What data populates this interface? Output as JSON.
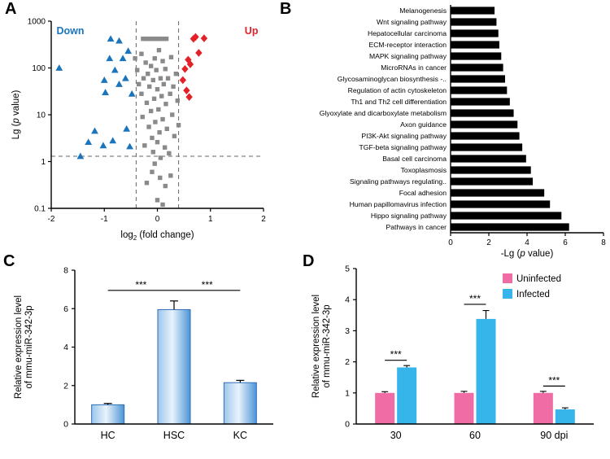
{
  "panels": {
    "a": {
      "label": "A"
    },
    "b": {
      "label": "B"
    },
    "c": {
      "label": "C"
    },
    "d": {
      "label": "D"
    }
  },
  "chart_data": [
    {
      "id": "volcano",
      "type": "scatter",
      "xlabel": "log2 (fold change)",
      "ylabel": "Lg (p value)",
      "xlim": [
        -2,
        2
      ],
      "ylim_log": [
        0.1,
        1000
      ],
      "x_ticks": [
        -2,
        -1,
        0,
        1,
        2
      ],
      "y_ticks": [
        0.1,
        1,
        10,
        100,
        1000
      ],
      "threshold_x": [
        -0.4,
        0.4
      ],
      "threshold_y": 1.3,
      "annotations": [
        {
          "text": "Down",
          "color": "#1B75BC"
        },
        {
          "text": "Up",
          "color": "#E32128"
        }
      ],
      "series": [
        {
          "name": "down",
          "marker": "triangle",
          "color": "#1B75BC",
          "points": [
            [
              -1.85,
              100
            ],
            [
              -1.45,
              1.3
            ],
            [
              -1.3,
              2.6
            ],
            [
              -1.18,
              4.5
            ],
            [
              -1.02,
              2.2
            ],
            [
              -1.0,
              55
            ],
            [
              -0.98,
              30
            ],
            [
              -0.9,
              160
            ],
            [
              -0.88,
              420
            ],
            [
              -0.84,
              2.8
            ],
            [
              -0.8,
              90
            ],
            [
              -0.72,
              380
            ],
            [
              -0.72,
              45
            ],
            [
              -0.65,
              160
            ],
            [
              -0.6,
              60
            ],
            [
              -0.58,
              5
            ],
            [
              -0.55,
              230
            ],
            [
              -0.52,
              2.1
            ],
            [
              -0.48,
              28
            ]
          ]
        },
        {
          "name": "ns",
          "marker": "square",
          "color": "#8A8A8A",
          "points": [
            [
              -0.27,
              420
            ],
            [
              -0.23,
              420
            ],
            [
              -0.19,
              420
            ],
            [
              -0.15,
              420
            ],
            [
              -0.11,
              420
            ],
            [
              -0.07,
              420
            ],
            [
              -0.03,
              420
            ],
            [
              0.01,
              420
            ],
            [
              0.05,
              420
            ],
            [
              0.09,
              420
            ],
            [
              0.13,
              420
            ],
            [
              0.17,
              420
            ],
            [
              -0.42,
              160
            ],
            [
              -0.38,
              90
            ],
            [
              -0.35,
              45
            ],
            [
              -0.3,
              200
            ],
            [
              -0.3,
              28
            ],
            [
              -0.28,
              9
            ],
            [
              -0.26,
              60
            ],
            [
              -0.24,
              2.2
            ],
            [
              -0.22,
              130
            ],
            [
              -0.2,
              18
            ],
            [
              -0.18,
              75
            ],
            [
              -0.16,
              5.5
            ],
            [
              -0.15,
              40
            ],
            [
              -0.12,
              110
            ],
            [
              -0.12,
              12
            ],
            [
              -0.1,
              3.2
            ],
            [
              -0.08,
              55
            ],
            [
              -0.08,
              1.6
            ],
            [
              -0.06,
              22
            ],
            [
              -0.05,
              160
            ],
            [
              -0.04,
              7
            ],
            [
              -0.02,
              90
            ],
            [
              0,
              35
            ],
            [
              0,
              2.6
            ],
            [
              0.02,
              13
            ],
            [
              0.03,
              240
            ],
            [
              0.04,
              4.2
            ],
            [
              0.06,
              60
            ],
            [
              0.06,
              1.2
            ],
            [
              0.08,
              25
            ],
            [
              0.1,
              140
            ],
            [
              0.1,
              8
            ],
            [
              0.12,
              45
            ],
            [
              0.14,
              2
            ],
            [
              0.15,
              95
            ],
            [
              0.16,
              17
            ],
            [
              0.18,
              5
            ],
            [
              0.2,
              60
            ],
            [
              0.22,
              1.5
            ],
            [
              0.24,
              28
            ],
            [
              0.26,
              170
            ],
            [
              0.28,
              10
            ],
            [
              0.3,
              40
            ],
            [
              0.32,
              3.5
            ],
            [
              0.35,
              75
            ],
            [
              0.38,
              20
            ],
            [
              0.4,
              6
            ],
            [
              0.05,
              0.45
            ],
            [
              -0.1,
              0.6
            ],
            [
              0.15,
              0.3
            ],
            [
              -0.2,
              0.35
            ],
            [
              0,
              0.15
            ],
            [
              0.25,
              0.5
            ],
            [
              -0.05,
              0.9
            ],
            [
              0.1,
              0.12
            ]
          ]
        },
        {
          "name": "up",
          "marker": "diamond",
          "color": "#E32128",
          "points": [
            [
              0.48,
              55
            ],
            [
              0.52,
              95
            ],
            [
              0.55,
              33
            ],
            [
              0.58,
              150
            ],
            [
              0.6,
              24
            ],
            [
              0.62,
              120
            ],
            [
              0.68,
              420
            ],
            [
              0.72,
              460
            ],
            [
              0.78,
              210
            ],
            [
              0.88,
              430
            ]
          ]
        }
      ]
    },
    {
      "id": "kegg",
      "type": "bar",
      "orientation": "horizontal",
      "xlabel": "-Lg (p value)",
      "xlim": [
        0,
        8
      ],
      "x_ticks": [
        0,
        2,
        4,
        6,
        8
      ],
      "bar_color": "#000000",
      "categories": [
        "Melanogenesis",
        "Wnt signaling pathway",
        "Hepatocellular carcinoma",
        "ECM-receptor interaction",
        "MAPK signaling pathway",
        "MicroRNAs in cancer",
        "Glycosaminoglycan biosynthesis -..",
        "Regulation of actin cytoskeleton",
        "Th1 and Th2 cell differentiation",
        "Glyoxylate and dicarboxylate metabolism",
        "Axon guidance",
        "PI3K-Akt signaling pathway",
        "TGF-beta signaling pathway",
        "Basal cell carcinoma",
        "Toxoplasmosis",
        "Signaling pathways regulating..",
        "Focal adhesion",
        "Human papillomavirus infection",
        "Hippo signaling pathway",
        "Pathways in cancer"
      ],
      "values": [
        2.3,
        2.4,
        2.5,
        2.55,
        2.65,
        2.75,
        2.85,
        2.95,
        3.1,
        3.3,
        3.5,
        3.6,
        3.75,
        3.95,
        4.2,
        4.3,
        4.9,
        5.2,
        5.8,
        6.2
      ]
    },
    {
      "id": "expr-c",
      "type": "bar",
      "ylabel_lines": [
        "Relative expression level",
        "of mmu-miR-342-3p"
      ],
      "ylim": [
        0,
        8
      ],
      "y_ticks": [
        0,
        2,
        4,
        6,
        8
      ],
      "categories": [
        "HC",
        "HSC",
        "KC"
      ],
      "values": [
        1.0,
        5.95,
        2.15
      ],
      "errors": [
        0.07,
        0.45,
        0.12
      ],
      "bar_gradient": [
        "#9cc6ec",
        "#e9f3fc",
        "#4b94d6"
      ],
      "bar_stroke": "#2f6db5",
      "significance": [
        {
          "from": 0,
          "to": 1,
          "y": 6.95,
          "text": "***"
        },
        {
          "from": 1,
          "to": 2,
          "y": 6.95,
          "text": "***"
        }
      ]
    },
    {
      "id": "expr-d",
      "type": "grouped-bar",
      "ylabel_lines": [
        "Relative expression level",
        "of mmu-miR-342-3p"
      ],
      "ylim": [
        0,
        5
      ],
      "y_ticks": [
        0,
        1,
        2,
        3,
        4,
        5
      ],
      "categories": [
        "30",
        "60",
        "90 dpi"
      ],
      "series": [
        {
          "name": "Uninfected",
          "color": "#F06CA5",
          "values": [
            1.0,
            1.0,
            1.0
          ],
          "errors": [
            0.04,
            0.05,
            0.05
          ]
        },
        {
          "name": "Infected",
          "color": "#35B5E9",
          "values": [
            1.82,
            3.38,
            0.47
          ],
          "errors": [
            0.06,
            0.27,
            0.05
          ]
        }
      ],
      "legend_position": "top-right",
      "significance": [
        {
          "group": 0,
          "y": 2.05,
          "text": "***"
        },
        {
          "group": 1,
          "y": 3.85,
          "text": "***"
        },
        {
          "group": 2,
          "y": 1.22,
          "text": "***"
        }
      ]
    }
  ]
}
